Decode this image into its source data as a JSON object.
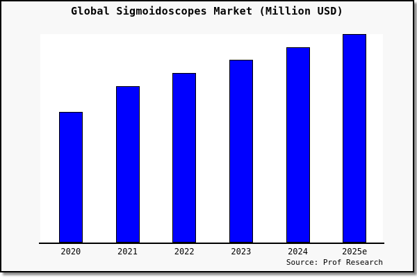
{
  "figure": {
    "background": "#f8f8f8",
    "frame_border_color": "#000000",
    "page_background": "#ffffff"
  },
  "chart_data": {
    "type": "bar",
    "title": "Global Sigmoidoscopes Market (Million USD)",
    "unit": "Million USD",
    "categories": [
      "2020",
      "2021",
      "2022",
      "2023",
      "2024",
      "2025e"
    ],
    "values": [
      62.7,
      75.0,
      81.3,
      87.7,
      93.7,
      100.0
    ],
    "values_note": "no y-axis scale shown in figure; values are relative bar heights with tallest bar (2025e) = 100",
    "xlabel": "",
    "ylabel": "",
    "ylim": [
      0,
      100.3
    ],
    "y_axis_visible": false,
    "gridlines": false,
    "legend": null,
    "bar_color": "#0000ff",
    "bar_edge_color": "#000000",
    "plot_background": "#ffffff",
    "axis_color": "#000000",
    "source": "Source: Prof Research"
  }
}
